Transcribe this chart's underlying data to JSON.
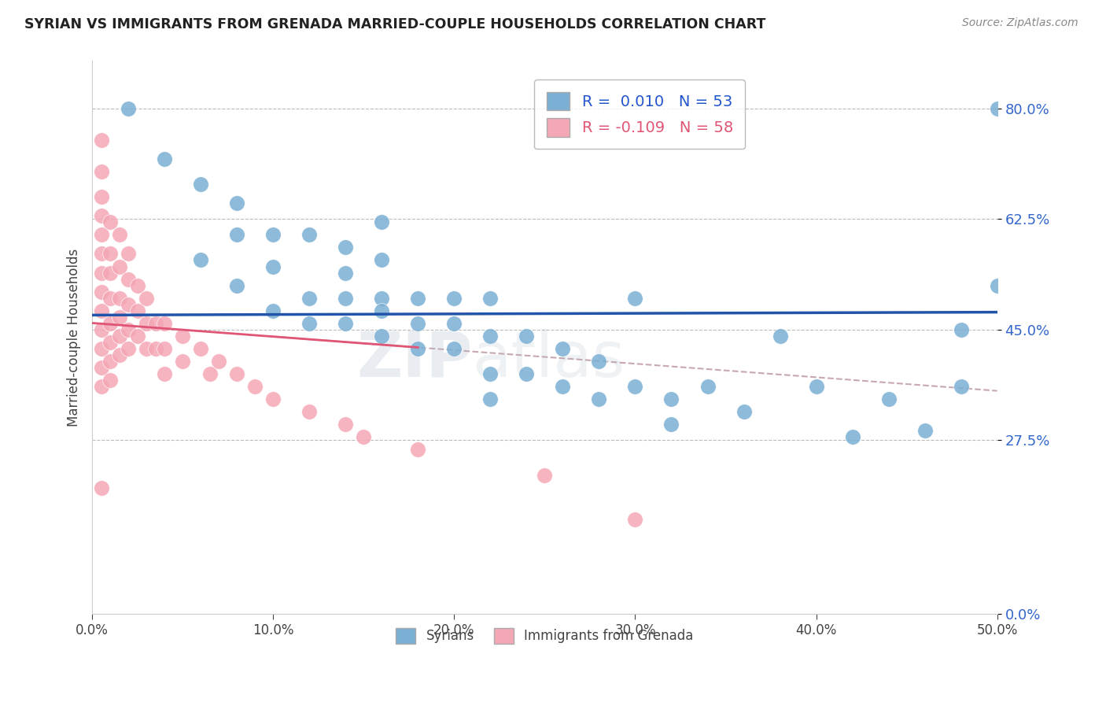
{
  "title": "SYRIAN VS IMMIGRANTS FROM GRENADA MARRIED-COUPLE HOUSEHOLDS CORRELATION CHART",
  "source": "Source: ZipAtlas.com",
  "ylabel": "Married-couple Households",
  "xmin": 0.0,
  "xmax": 0.5,
  "ymin": 0.0,
  "ymax": 0.875,
  "yticks": [
    0.0,
    0.275,
    0.45,
    0.625,
    0.8
  ],
  "xticks": [
    0.0,
    0.1,
    0.2,
    0.3,
    0.4,
    0.5
  ],
  "watermark_zip": "ZIP",
  "watermark_atlas": "atlas",
  "blue_color": "#7BAFD4",
  "pink_color": "#F4A7B5",
  "blue_line_color": "#2255AA",
  "pink_line_color": "#E05575",
  "pink_dash_color": "#C8A8B0",
  "background_color": "#FFFFFF",
  "syrians_x": [
    0.02,
    0.04,
    0.06,
    0.06,
    0.08,
    0.08,
    0.08,
    0.1,
    0.1,
    0.1,
    0.12,
    0.12,
    0.12,
    0.14,
    0.14,
    0.14,
    0.16,
    0.16,
    0.16,
    0.16,
    0.18,
    0.18,
    0.18,
    0.2,
    0.2,
    0.22,
    0.22,
    0.22,
    0.24,
    0.24,
    0.26,
    0.26,
    0.28,
    0.28,
    0.3,
    0.3,
    0.32,
    0.32,
    0.34,
    0.36,
    0.38,
    0.4,
    0.42,
    0.44,
    0.46,
    0.48,
    0.5,
    0.5,
    0.14,
    0.16,
    0.2,
    0.22,
    0.48
  ],
  "syrians_y": [
    0.8,
    0.72,
    0.68,
    0.56,
    0.65,
    0.6,
    0.52,
    0.6,
    0.55,
    0.48,
    0.6,
    0.5,
    0.46,
    0.58,
    0.5,
    0.46,
    0.62,
    0.56,
    0.5,
    0.44,
    0.5,
    0.46,
    0.42,
    0.5,
    0.46,
    0.5,
    0.44,
    0.38,
    0.44,
    0.38,
    0.42,
    0.36,
    0.4,
    0.34,
    0.5,
    0.36,
    0.34,
    0.3,
    0.36,
    0.32,
    0.44,
    0.36,
    0.28,
    0.34,
    0.29,
    0.36,
    0.52,
    0.8,
    0.54,
    0.48,
    0.42,
    0.34,
    0.45
  ],
  "grenada_x": [
    0.005,
    0.005,
    0.005,
    0.005,
    0.005,
    0.005,
    0.005,
    0.005,
    0.005,
    0.005,
    0.005,
    0.005,
    0.005,
    0.005,
    0.01,
    0.01,
    0.01,
    0.01,
    0.01,
    0.01,
    0.01,
    0.01,
    0.015,
    0.015,
    0.015,
    0.015,
    0.015,
    0.015,
    0.02,
    0.02,
    0.02,
    0.02,
    0.02,
    0.025,
    0.025,
    0.025,
    0.03,
    0.03,
    0.03,
    0.035,
    0.035,
    0.04,
    0.04,
    0.04,
    0.05,
    0.05,
    0.06,
    0.065,
    0.07,
    0.08,
    0.09,
    0.1,
    0.12,
    0.14,
    0.15,
    0.18,
    0.25,
    0.3
  ],
  "grenada_y": [
    0.75,
    0.7,
    0.66,
    0.63,
    0.6,
    0.57,
    0.54,
    0.51,
    0.48,
    0.45,
    0.42,
    0.39,
    0.36,
    0.2,
    0.62,
    0.57,
    0.54,
    0.5,
    0.46,
    0.43,
    0.4,
    0.37,
    0.6,
    0.55,
    0.5,
    0.47,
    0.44,
    0.41,
    0.57,
    0.53,
    0.49,
    0.45,
    0.42,
    0.52,
    0.48,
    0.44,
    0.5,
    0.46,
    0.42,
    0.46,
    0.42,
    0.46,
    0.42,
    0.38,
    0.44,
    0.4,
    0.42,
    0.38,
    0.4,
    0.38,
    0.36,
    0.34,
    0.32,
    0.3,
    0.28,
    0.26,
    0.22,
    0.15
  ]
}
